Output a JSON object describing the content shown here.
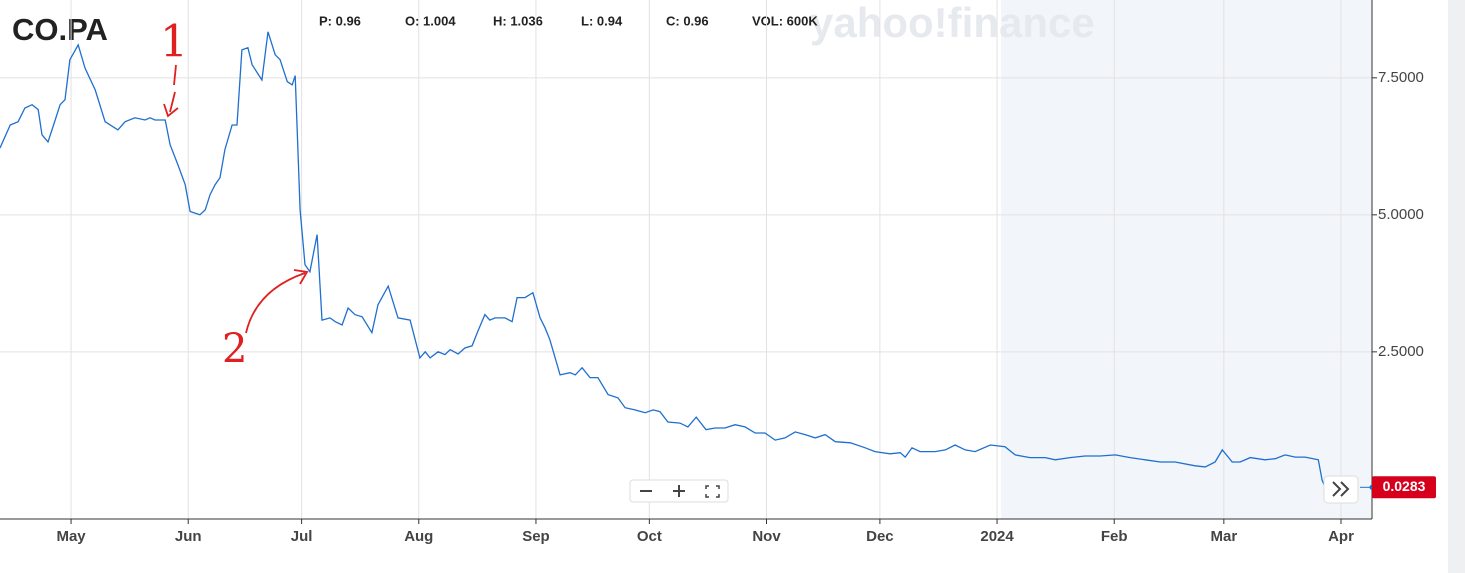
{
  "chart_data": {
    "type": "line",
    "title": "CO.PA",
    "stats": [
      "P: 0.96",
      "O: 1.004",
      "H: 1.036",
      "L: 0.94",
      "C: 0.96",
      "VOL: 600K"
    ],
    "watermark": "yahoo!finance",
    "annotations": [
      "1",
      "2"
    ],
    "color": "#1f6fd0",
    "grid": true,
    "x": [
      -18.8,
      -16.1,
      -14.0,
      -12.2,
      -10.3,
      -8.7,
      -7.7,
      -6.1,
      -4.2,
      -2.9,
      -1.6,
      -0.3,
      1.9,
      3.7,
      6.4,
      9.0,
      12.4,
      14.3,
      16.9,
      19.6,
      20.9,
      22.2,
      24.9,
      26.2,
      28.3,
      30.2,
      31.5,
      34.1,
      35.5,
      36.8,
      38.1,
      39.4,
      40.7,
      42.6,
      43.9,
      45.2,
      46.8,
      47.9,
      50.5,
      52.1,
      54.0,
      55.3,
      57.2,
      58.5,
      59.3,
      60.6,
      61.9,
      63.2,
      65.1,
      66.4,
      68.5,
      69.9,
      71.7,
      73.3,
      75.1,
      77.0,
      79.6,
      81.2,
      83.9,
      86.5,
      89.7,
      92.3,
      93.7,
      95.0,
      97.1,
      98.9,
      100.3,
      102.4,
      104.2,
      106.1,
      107.6,
      109.5,
      110.8,
      112.2,
      114.8,
      116.7,
      118.0,
      120.1,
      122.2,
      124.1,
      125.4,
      126.7,
      129.4,
      132.0,
      133.4,
      135.2,
      137.3,
      139.4,
      142.1,
      144.7,
      146.6,
      149.2,
      151.9,
      154.0,
      155.8,
      157.9,
      161.1,
      163.2,
      165.4,
      168.0,
      170.4,
      173.0,
      175.7,
      178.3,
      181.0,
      183.6,
      186.3,
      188.9,
      191.6,
      194.2,
      196.9,
      199.5,
      202.2,
      206.2,
      210.1,
      212.7,
      216.7,
      219.4,
      220.7,
      222.5,
      224.6,
      228.6,
      231.3,
      233.9,
      236.6,
      239.2,
      243.2,
      247.1,
      249.8,
      253.7,
      257.7,
      260.4,
      264.3,
      268.3,
      272.3,
      276.3,
      280.2,
      284.2,
      288.2,
      292.1,
      297.4,
      300.1,
      302.7,
      304.6,
      307.2,
      309.3,
      312.0,
      315.9,
      318.6,
      321.2,
      323.9,
      326.5,
      330.0,
      331.0,
      331.8
    ],
    "values": [
      6.22,
      6.64,
      6.7,
      6.95,
      7.01,
      6.92,
      6.46,
      6.33,
      6.73,
      7.01,
      7.1,
      7.83,
      8.1,
      7.68,
      7.28,
      6.7,
      6.55,
      6.7,
      6.77,
      6.73,
      6.77,
      6.73,
      6.73,
      6.28,
      5.91,
      5.55,
      5.06,
      5.0,
      5.09,
      5.37,
      5.55,
      5.68,
      6.19,
      6.64,
      6.64,
      8.01,
      8.05,
      7.74,
      7.46,
      8.34,
      7.92,
      7.83,
      7.43,
      7.37,
      7.54,
      5.09,
      4.09,
      3.96,
      4.64,
      3.08,
      3.12,
      3.05,
      2.99,
      3.3,
      3.18,
      3.14,
      2.85,
      3.36,
      3.7,
      3.12,
      3.08,
      2.39,
      2.5,
      2.39,
      2.5,
      2.45,
      2.54,
      2.46,
      2.57,
      2.61,
      2.87,
      3.18,
      3.08,
      3.12,
      3.12,
      3.05,
      3.49,
      3.49,
      3.58,
      3.12,
      2.94,
      2.72,
      2.08,
      2.12,
      2.08,
      2.21,
      2.03,
      2.03,
      1.72,
      1.66,
      1.48,
      1.44,
      1.39,
      1.44,
      1.41,
      1.22,
      1.2,
      1.13,
      1.31,
      1.08,
      1.11,
      1.11,
      1.17,
      1.13,
      1.02,
      1.02,
      0.89,
      0.93,
      1.04,
      0.99,
      0.93,
      0.99,
      0.86,
      0.84,
      0.75,
      0.68,
      0.64,
      0.66,
      0.58,
      0.75,
      0.68,
      0.68,
      0.71,
      0.8,
      0.71,
      0.68,
      0.8,
      0.77,
      0.62,
      0.57,
      0.57,
      0.53,
      0.57,
      0.6,
      0.6,
      0.62,
      0.57,
      0.53,
      0.49,
      0.49,
      0.42,
      0.4,
      0.49,
      0.71,
      0.49,
      0.49,
      0.57,
      0.53,
      0.55,
      0.62,
      0.58,
      0.58,
      0.53,
      0.16,
      0.0283
    ],
    "xlim": [
      -18.8,
      344.2
    ],
    "xticks": [
      {
        "value": 0,
        "label": "May"
      },
      {
        "value": 31,
        "label": "Jun"
      },
      {
        "value": 61,
        "label": "Jul"
      },
      {
        "value": 92,
        "label": "Aug"
      },
      {
        "value": 123,
        "label": "Sep"
      },
      {
        "value": 153,
        "label": "Oct"
      },
      {
        "value": 184,
        "label": "Nov"
      },
      {
        "value": 214,
        "label": "Dec"
      },
      {
        "value": 245,
        "label": "2024"
      },
      {
        "value": 276,
        "label": "Feb"
      },
      {
        "value": 305,
        "label": "Mar"
      },
      {
        "value": 336,
        "label": "Apr"
      }
    ],
    "ylim": [
      -0.55,
      8.92
    ],
    "yticks": [
      {
        "value": 2.5,
        "label": "2.5000"
      },
      {
        "value": 5,
        "label": "5.0000"
      },
      {
        "value": 7.5,
        "label": "7.5000"
      }
    ]
  }
}
